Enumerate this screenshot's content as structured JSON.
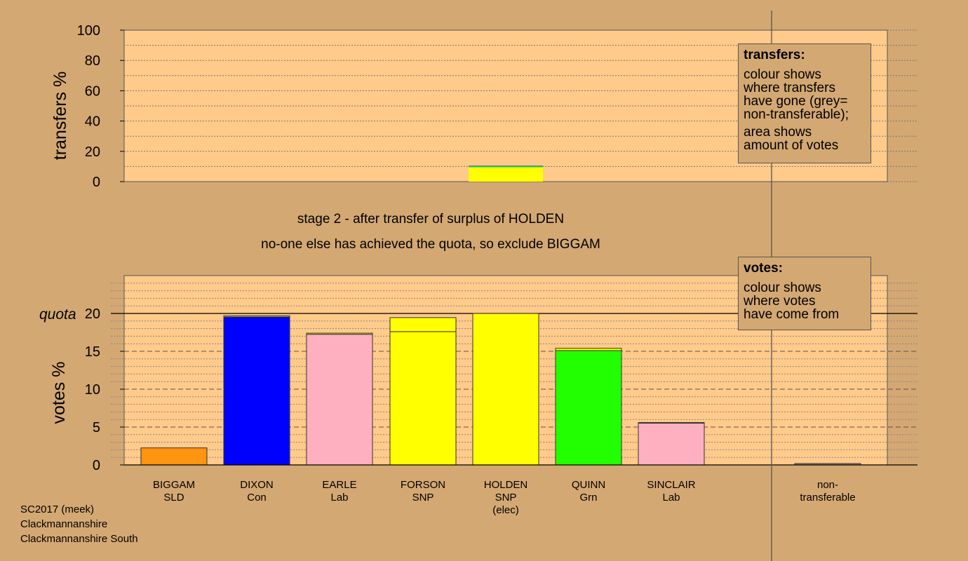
{
  "chart_data": [
    {
      "type": "bar",
      "panel": "transfers",
      "ylabel": "transfers %",
      "ylim": [
        0,
        100
      ],
      "yticks": [
        0,
        20,
        40,
        60,
        80,
        100
      ],
      "categories": [
        "BIGGAM",
        "DIXON",
        "EARLE",
        "FORSON",
        "HOLDEN",
        "QUINN",
        "SINCLAIR",
        "non-transferable"
      ],
      "series": [
        {
          "color": "#ffff00",
          "values": [
            0,
            0,
            0,
            0,
            9.4,
            0,
            0,
            0
          ]
        },
        {
          "color": "#22ff00",
          "values": [
            0,
            0,
            0,
            0,
            0.7,
            0,
            0,
            0
          ]
        },
        {
          "color": "#0000ff",
          "values": [
            0,
            0,
            0,
            0,
            0.3,
            0,
            0,
            0
          ]
        }
      ]
    },
    {
      "type": "bar",
      "panel": "votes",
      "ylabel": "votes %",
      "ylim": [
        0,
        25
      ],
      "yticks": [
        0,
        5,
        10,
        15,
        20
      ],
      "quota": 20,
      "quota_label": "quota",
      "categories": [
        "BIGGAM",
        "DIXON",
        "EARLE",
        "FORSON",
        "HOLDEN",
        "QUINN",
        "SINCLAIR",
        "non-transferable"
      ],
      "category_labels": [
        [
          "BIGGAM",
          "SLD"
        ],
        [
          "DIXON",
          "Con"
        ],
        [
          "EARLE",
          "Lab"
        ],
        [
          "FORSON",
          "SNP"
        ],
        [
          "HOLDEN",
          "SNP",
          "(elec)"
        ],
        [
          "QUINN",
          "Grn"
        ],
        [
          "SINCLAIR",
          "Lab"
        ],
        [
          "non-",
          "transferable"
        ]
      ],
      "colors": [
        "#ff9410",
        "#0000ff",
        "#ffb0c0",
        "#ffff00",
        "#ffff00",
        "#22ff00",
        "#ffb0c0",
        "#909090"
      ],
      "base": [
        2.25,
        19.55,
        17.25,
        17.6,
        20.0,
        15.1,
        5.55,
        0
      ],
      "transfer": [
        0,
        0.15,
        0.15,
        1.85,
        0,
        0.3,
        0.05,
        0.15
      ],
      "totals": [
        2.25,
        19.7,
        17.4,
        19.45,
        20.0,
        15.4,
        5.6,
        0.15
      ]
    }
  ],
  "stage": {
    "line1": "stage 2 - after transfer of surplus of HOLDEN",
    "line2": "no-one else has achieved the quota, so exclude BIGGAM"
  },
  "legend_transfers": {
    "title": "transfers:",
    "p1": [
      "colour shows",
      "where transfers",
      "have gone (grey=",
      "non-transferable);"
    ],
    "p2": [
      "area shows",
      "amount of votes"
    ]
  },
  "legend_votes": {
    "title": "votes:",
    "p1": [
      "colour shows",
      "where votes",
      "have come from"
    ]
  },
  "footer": {
    "line1": "SC2017 (meek)",
    "line2": "Clackmannanshire",
    "line3": "Clackmannanshire South"
  }
}
